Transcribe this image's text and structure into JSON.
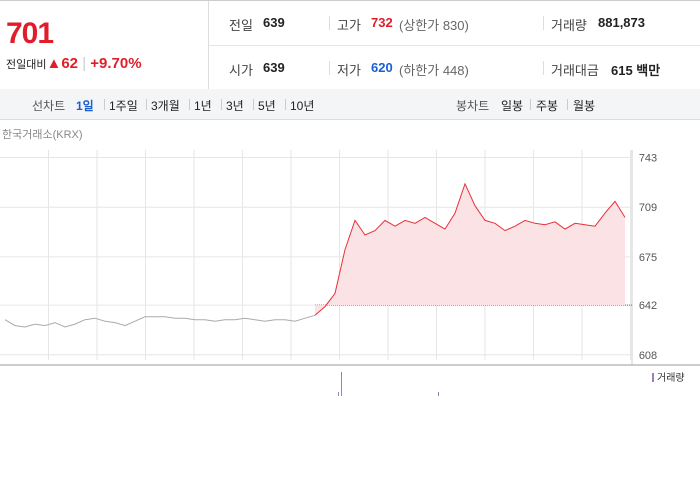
{
  "header": {
    "price": "701",
    "change_label": "전일대비",
    "change": "62",
    "change_pct": "+9.70%"
  },
  "stats": [
    [
      {
        "label": "전일",
        "value": "639"
      },
      {
        "label": "고가",
        "value": "732",
        "note": "(상한가 830)"
      },
      {
        "label": "거래량",
        "value": "881,873"
      }
    ],
    [
      {
        "label": "시가",
        "value": "639"
      },
      {
        "label": "저가",
        "value": "620",
        "note": "(하한가 448)"
      },
      {
        "label": "거래대금",
        "value": "615 백만"
      }
    ]
  ],
  "tabs": {
    "line_label": "선차트",
    "line": [
      "1일",
      "1주일",
      "3개월",
      "1년",
      "3년",
      "5년",
      "10년"
    ],
    "candle_label": "봉차트",
    "candle": [
      "일봉",
      "주봉",
      "월봉"
    ]
  },
  "source": "한국거래소(KRX)",
  "volume_label": "거래량",
  "chart_data": {
    "type": "line",
    "ylim": [
      601,
      755
    ],
    "yticks": [
      608,
      642,
      675,
      709,
      743
    ],
    "grid": true,
    "reference": 642,
    "series": [
      {
        "color": "#aaaaaa",
        "values": [
          632,
          628,
          627,
          629,
          628,
          630,
          627,
          629,
          632,
          633,
          631,
          630,
          628,
          631,
          634,
          634,
          634,
          633,
          633,
          632,
          632,
          631,
          632,
          632,
          633,
          632,
          631,
          632,
          632,
          631,
          633,
          635,
          null,
          null,
          null,
          null,
          null,
          null,
          null,
          null,
          null,
          null,
          null,
          null,
          null,
          null,
          null,
          null,
          null,
          null,
          null,
          null,
          null,
          null,
          null,
          null,
          null,
          null,
          null,
          null,
          null,
          null,
          null
        ]
      },
      {
        "color": "#e8303a",
        "fill": "#fbe3e5",
        "values": [
          null,
          null,
          null,
          null,
          null,
          null,
          null,
          null,
          null,
          null,
          null,
          null,
          null,
          null,
          null,
          null,
          null,
          null,
          null,
          null,
          null,
          null,
          null,
          null,
          null,
          null,
          null,
          null,
          null,
          null,
          null,
          635,
          641,
          650,
          680,
          700,
          690,
          693,
          700,
          696,
          700,
          698,
          702,
          698,
          694,
          705,
          725,
          710,
          700,
          698,
          693,
          696,
          700,
          698,
          697,
          699,
          694,
          698,
          697,
          696,
          705,
          713,
          702
        ]
      }
    ]
  }
}
